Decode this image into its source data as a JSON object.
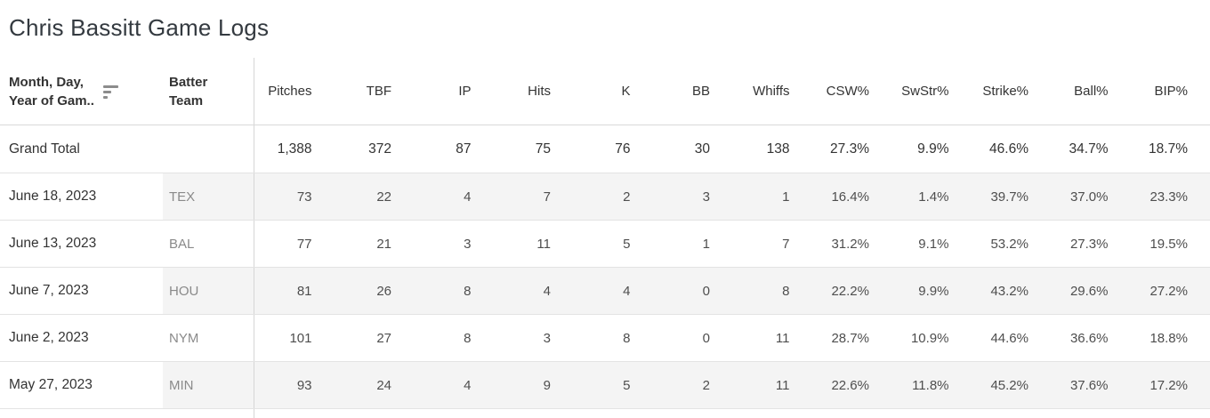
{
  "title": "Chris Bassitt Game Logs",
  "chart_data": {
    "type": "table",
    "title": "Chris Bassitt Game Logs",
    "header": {
      "date_line1": "Month, Day,",
      "date_line2": "Year of Gam..",
      "sort_icon": "sort-descending-icon",
      "team_line1": "Batter",
      "team_line2": "Team"
    },
    "metric_columns": [
      "Pitches",
      "TBF",
      "IP",
      "Hits",
      "K",
      "BB",
      "Whiffs",
      "CSW%",
      "SwStr%",
      "Strike%",
      "Ball%",
      "BIP%"
    ],
    "grand_total": {
      "label": "Grand Total",
      "values": [
        "1,388",
        "372",
        "87",
        "75",
        "76",
        "30",
        "138",
        "27.3%",
        "9.9%",
        "46.6%",
        "34.7%",
        "18.7%"
      ]
    },
    "rows": [
      {
        "date": "June 18, 2023",
        "team": "TEX",
        "values": [
          "73",
          "22",
          "4",
          "7",
          "2",
          "3",
          "1",
          "16.4%",
          "1.4%",
          "39.7%",
          "37.0%",
          "23.3%"
        ]
      },
      {
        "date": "June 13, 2023",
        "team": "BAL",
        "values": [
          "77",
          "21",
          "3",
          "11",
          "5",
          "1",
          "7",
          "31.2%",
          "9.1%",
          "53.2%",
          "27.3%",
          "19.5%"
        ]
      },
      {
        "date": "June 7, 2023",
        "team": "HOU",
        "values": [
          "81",
          "26",
          "8",
          "4",
          "4",
          "0",
          "8",
          "22.2%",
          "9.9%",
          "43.2%",
          "29.6%",
          "27.2%"
        ]
      },
      {
        "date": "June 2, 2023",
        "team": "NYM",
        "values": [
          "101",
          "27",
          "8",
          "3",
          "8",
          "0",
          "11",
          "28.7%",
          "10.9%",
          "44.6%",
          "36.6%",
          "18.8%"
        ]
      },
      {
        "date": "May 27, 2023",
        "team": "MIN",
        "values": [
          "93",
          "24",
          "4",
          "9",
          "5",
          "2",
          "11",
          "22.6%",
          "11.8%",
          "45.2%",
          "37.6%",
          "17.2%"
        ]
      }
    ]
  },
  "colors": {
    "title_text": "#343a40",
    "header_text": "#333333",
    "header_border": "#d9d9d9",
    "row_border": "#e3e3e3",
    "divider": "#d6d6d6",
    "band": "#f4f4f4",
    "date_text": "#333333",
    "team_text": "#8a8a8a",
    "value_text": "#4e4e4e",
    "total_text": "#333333"
  }
}
